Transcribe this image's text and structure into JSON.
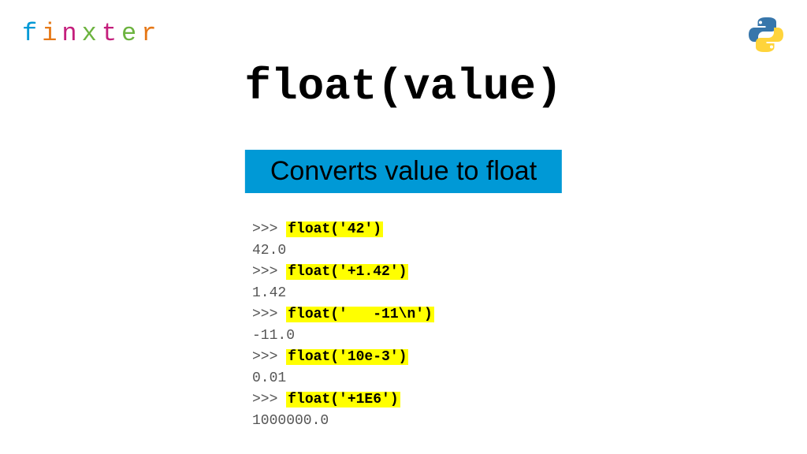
{
  "logo": {
    "letters": [
      "f",
      "i",
      "n",
      "x",
      "t",
      "e",
      "r"
    ],
    "colors": [
      "#0099d6",
      "#e67817",
      "#c41e7c",
      "#6cb33f",
      "#c41e7c",
      "#6cb33f",
      "#e67817"
    ]
  },
  "title": "float(value)",
  "subtitle": "Converts value to float",
  "subtitle_bg": "#0099d6",
  "highlight_bg": "#ffff00",
  "prompt": ">>> ",
  "code_examples": [
    {
      "call": "float('42')",
      "output": "42.0"
    },
    {
      "call": "float('+1.42')",
      "output": "1.42"
    },
    {
      "call": "float('   -11\\n')",
      "output": "-11.0"
    },
    {
      "call": "float('10e-3')",
      "output": "0.01"
    },
    {
      "call": "float('+1E6')",
      "output": "1000000.0"
    }
  ],
  "python_logo": {
    "blue": "#3776ab",
    "yellow": "#ffd43b"
  }
}
